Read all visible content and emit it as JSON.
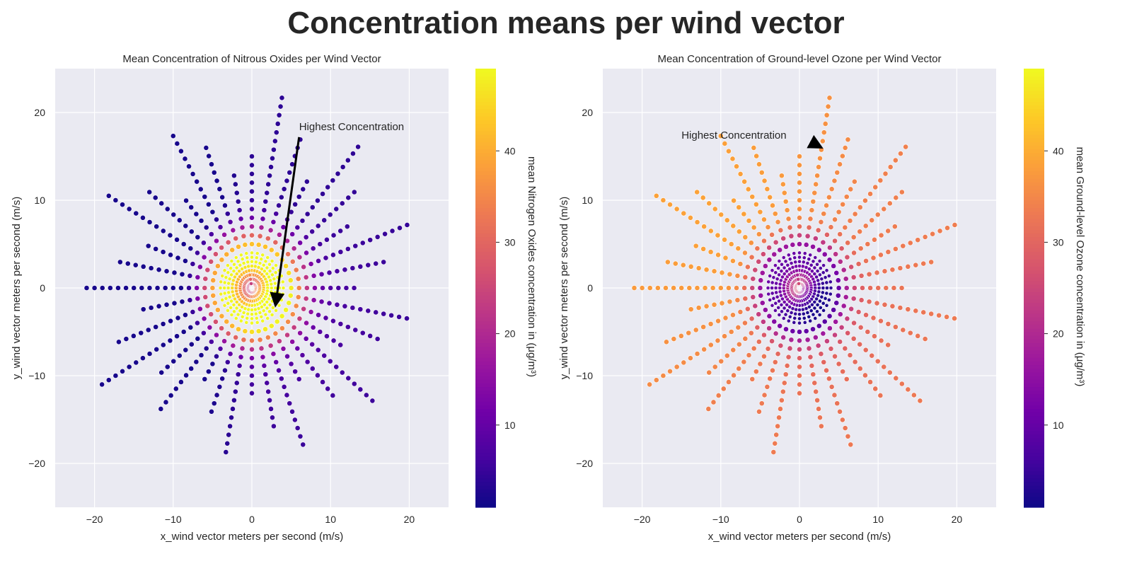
{
  "figure": {
    "title": "Concentration means per wind vector"
  },
  "colormap": {
    "name": "plasma",
    "stops": [
      "#0d0887",
      "#46039f",
      "#7201a8",
      "#9c179e",
      "#bd3786",
      "#d8576b",
      "#ed7953",
      "#fb9f3a",
      "#fdca26",
      "#f0f921"
    ],
    "vmin": 1,
    "vmax": 49
  },
  "style": {
    "axes_bg": "#eaeaf2",
    "grid_color": "#ffffff",
    "marker_edge": "#ffffff",
    "arrow_color": "#000000"
  },
  "chart_data": [
    {
      "type": "scatter",
      "title": "Mean Concentration of Nitrous Oxides per Wind Vector",
      "xlabel": "x_wind vector meters per second (m/s)",
      "ylabel": "y_wind vector meters per second (m/s)",
      "xlim": [
        -25,
        25
      ],
      "ylim": [
        -25,
        25
      ],
      "xticks": [
        -20,
        -10,
        0,
        10,
        20
      ],
      "yticks": [
        -20,
        -10,
        0,
        10,
        20
      ],
      "colorbar": {
        "label": "mean Nitrogen Oxides concentration in (μg/m³)",
        "ticks": [
          10,
          20,
          30,
          40
        ],
        "range": [
          1,
          49
        ]
      },
      "pattern": "radial-rings, 36 directions at 10° steps, speeds 0.5–22 m/s; concentration highest at low speeds from the SE quadrant",
      "annotation": {
        "text": "Highest Concentration",
        "text_xy": [
          6,
          18
        ],
        "point_xy": [
          3,
          -2
        ]
      },
      "pollutant": "nox"
    },
    {
      "type": "scatter",
      "title": "Mean Concentration of Ground-level Ozone per Wind Vector",
      "xlabel": "x_wind vector meters per second (m/s)",
      "ylabel": "y_wind vector meters per second (m/s)",
      "xlim": [
        -25,
        25
      ],
      "ylim": [
        -25,
        25
      ],
      "xticks": [
        -20,
        -10,
        0,
        10,
        20
      ],
      "yticks": [
        -20,
        -10,
        0,
        10,
        20
      ],
      "colorbar": {
        "label": "mean Ground-level Ozone concentration in (μg/m³)",
        "ticks": [
          10,
          20,
          30,
          40
        ],
        "range": [
          1,
          49
        ]
      },
      "pattern": "radial-rings, same wind vectors; concentration lowest at low speeds from the SE quadrant, highest at high speeds from north / west",
      "annotation": {
        "text": "Highest Concentration",
        "text_xy": [
          -15,
          17
        ],
        "point_xy": [
          2.8,
          16
        ]
      },
      "pollutant": "o3"
    }
  ]
}
